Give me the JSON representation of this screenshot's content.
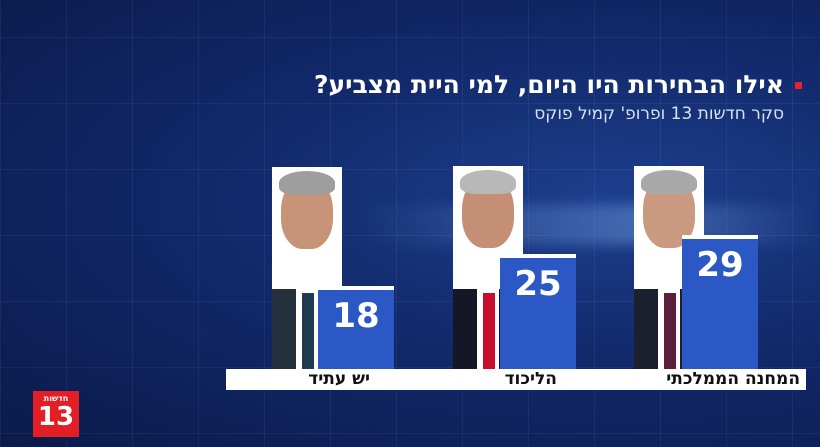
{
  "header": {
    "title": "אילו הבחירות היו היום, למי היית מצביע?",
    "subtitle": "סקר חדשות 13 ופרופ' קמיל פוקס"
  },
  "logo": {
    "text": "חדשות",
    "number": "13"
  },
  "colors": {
    "bar": "#2b58c4",
    "accent": "#e31e24",
    "background": "#12296a"
  },
  "chart_data": {
    "type": "bar",
    "categories": [
      "המחנה הממלכתי",
      "הליכוד",
      "יש עתיד"
    ],
    "values": [
      29,
      25,
      18
    ],
    "value_labels": [
      "29",
      "25",
      "18"
    ],
    "title": "אילו הבחירות היו היום, למי היית מצביע?",
    "subtitle": "סקר חדשות 13 ופרופ' קמיל פוקס",
    "xlabel": "",
    "ylabel": "",
    "grid": false,
    "legend": "none"
  }
}
